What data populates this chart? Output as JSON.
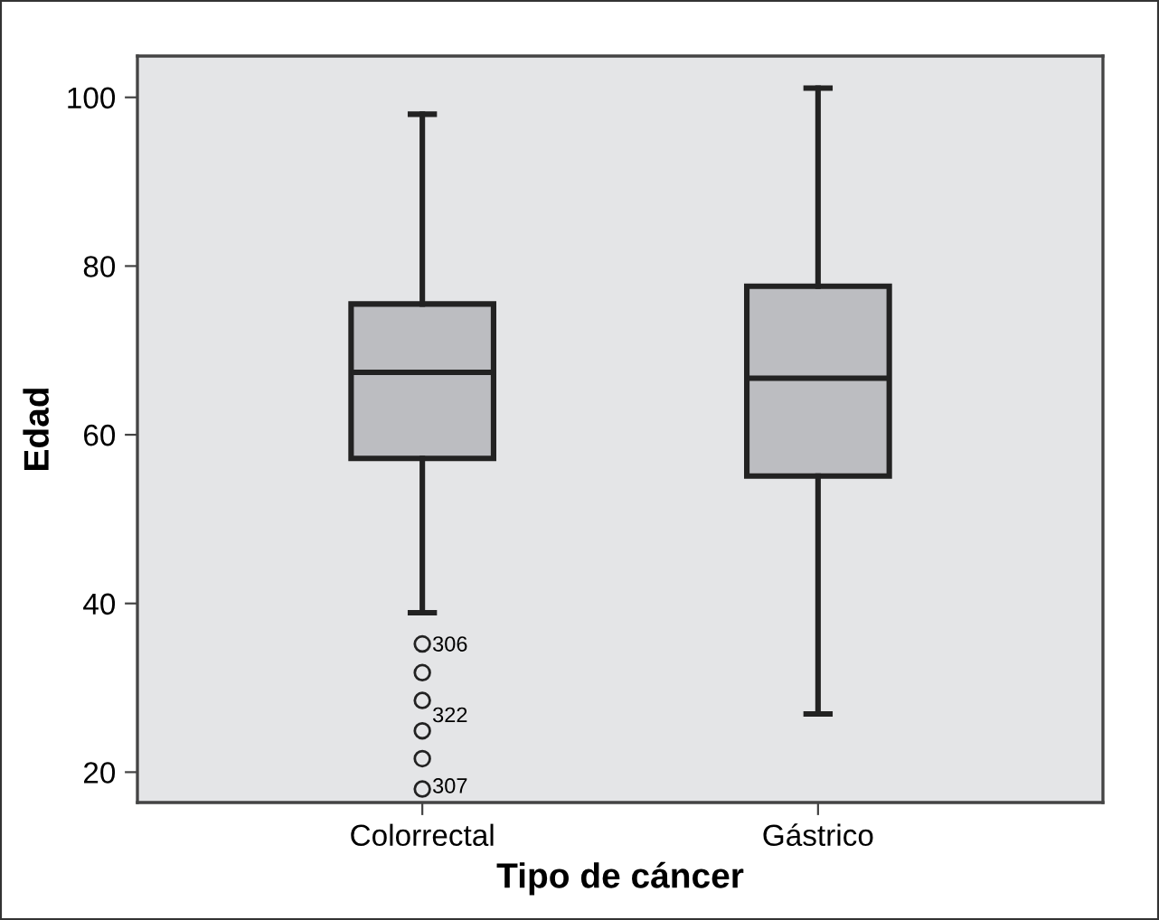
{
  "chart_data": {
    "type": "box",
    "xlabel": "Tipo de cáncer",
    "ylabel": "Edad",
    "categories": [
      "Colorrectal",
      "Gástrico"
    ],
    "boxes": [
      {
        "low": 38.9,
        "q1": 57.2,
        "median": 67.4,
        "q3": 75.5,
        "high": 98,
        "outliers": [
          35.2,
          31.8,
          28.5,
          24.9,
          21.6,
          18.0
        ]
      },
      {
        "low": 26.9,
        "q1": 55.1,
        "median": 66.7,
        "q3": 77.6,
        "high": 101.1
      }
    ],
    "color": "#bcbdc1",
    "ylim": [
      16.4,
      104.9
    ],
    "yticks": [
      20,
      40,
      60,
      80,
      100
    ],
    "grid": false,
    "annotations": [
      "306",
      "322",
      "307"
    ]
  }
}
